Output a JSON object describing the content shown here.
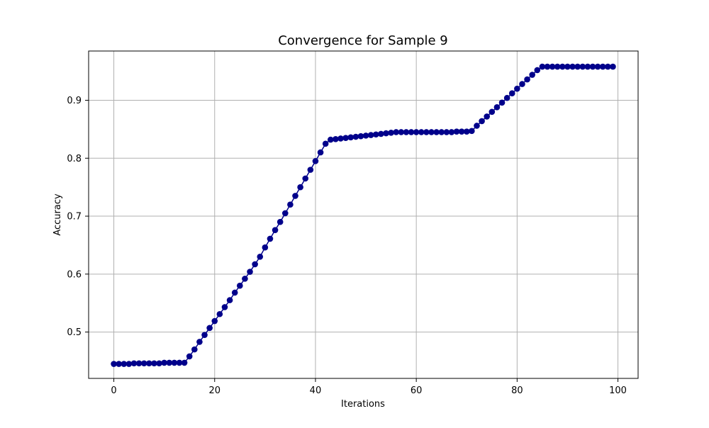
{
  "chart_data": {
    "type": "line",
    "title": "Convergence for Sample 9",
    "xlabel": "Iterations",
    "ylabel": "Accuracy",
    "xlim": [
      -5,
      104
    ],
    "ylim": [
      0.42,
      0.985
    ],
    "xticks": [
      0,
      20,
      40,
      60,
      80,
      100
    ],
    "yticks": [
      0.5,
      0.6,
      0.7,
      0.8,
      0.9
    ],
    "ytick_labels": [
      "0.5",
      "0.6",
      "0.7",
      "0.8",
      "0.9"
    ],
    "grid": true,
    "marker": "circle",
    "series": [
      {
        "color": "#00008b",
        "x": [
          0,
          1,
          2,
          3,
          4,
          5,
          6,
          7,
          8,
          9,
          10,
          11,
          12,
          13,
          14,
          15,
          16,
          17,
          18,
          19,
          20,
          21,
          22,
          23,
          24,
          25,
          26,
          27,
          28,
          29,
          30,
          31,
          32,
          33,
          34,
          35,
          36,
          37,
          38,
          39,
          40,
          41,
          42,
          43,
          44,
          45,
          46,
          47,
          48,
          49,
          50,
          51,
          52,
          53,
          54,
          55,
          56,
          57,
          58,
          59,
          60,
          61,
          62,
          63,
          64,
          65,
          66,
          67,
          68,
          69,
          70,
          71,
          72,
          73,
          74,
          75,
          76,
          77,
          78,
          79,
          80,
          81,
          82,
          83,
          84,
          85,
          86,
          87,
          88,
          89,
          90,
          91,
          92,
          93,
          94,
          95,
          96,
          97,
          98,
          99
        ],
        "y": [
          0.445,
          0.445,
          0.445,
          0.445,
          0.446,
          0.446,
          0.446,
          0.446,
          0.446,
          0.446,
          0.447,
          0.447,
          0.447,
          0.447,
          0.447,
          0.458,
          0.47,
          0.483,
          0.495,
          0.507,
          0.519,
          0.531,
          0.543,
          0.555,
          0.568,
          0.58,
          0.592,
          0.604,
          0.617,
          0.63,
          0.646,
          0.661,
          0.676,
          0.69,
          0.705,
          0.72,
          0.735,
          0.75,
          0.765,
          0.78,
          0.795,
          0.81,
          0.825,
          0.832,
          0.833,
          0.834,
          0.835,
          0.836,
          0.837,
          0.838,
          0.839,
          0.84,
          0.841,
          0.842,
          0.843,
          0.844,
          0.845,
          0.845,
          0.845,
          0.845,
          0.845,
          0.845,
          0.845,
          0.845,
          0.845,
          0.845,
          0.845,
          0.845,
          0.846,
          0.846,
          0.846,
          0.847,
          0.856,
          0.864,
          0.872,
          0.88,
          0.888,
          0.896,
          0.904,
          0.912,
          0.92,
          0.928,
          0.936,
          0.944,
          0.952,
          0.958,
          0.958,
          0.958,
          0.958,
          0.958,
          0.958,
          0.958,
          0.958,
          0.958,
          0.958,
          0.958,
          0.958,
          0.958,
          0.958,
          0.958
        ]
      }
    ]
  }
}
